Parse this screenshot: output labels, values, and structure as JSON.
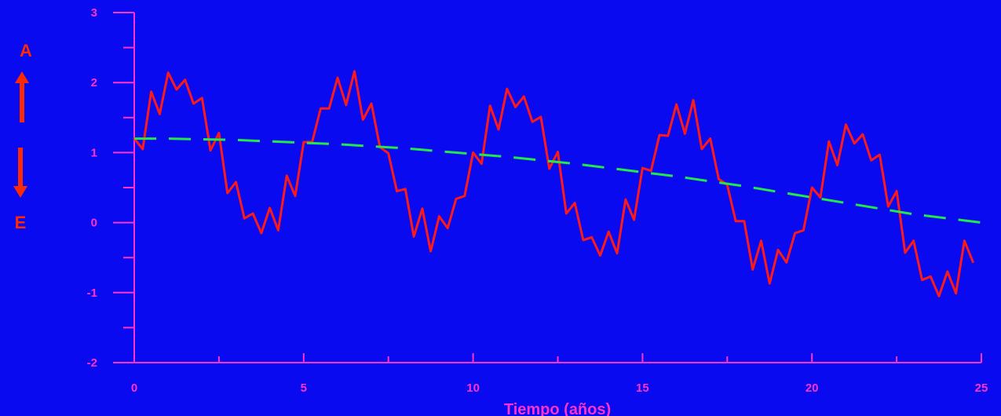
{
  "colors": {
    "background": "#0a0af0",
    "axis": "#ff33cc",
    "series_main": "#ff1a1a",
    "series_trend": "#22e84a",
    "side_labels": "#ff2a00"
  },
  "side_labels": {
    "top": "A",
    "bottom": "E"
  },
  "chart_data": {
    "type": "line",
    "title": "",
    "xlabel": "Tiempo (años)",
    "ylabel": "",
    "xlim": [
      0,
      25
    ],
    "ylim": [
      -2,
      3
    ],
    "xticks": [
      0,
      5,
      10,
      15,
      20,
      25
    ],
    "yticks": [
      -2,
      -1,
      0,
      1,
      2,
      3
    ],
    "x_minor_step": 2.5,
    "y_minor_step": 0.5,
    "grid": false,
    "series": [
      {
        "style": "solid",
        "color": "#ff1a1a",
        "x": [
          0,
          0.25,
          0.5,
          0.75,
          1,
          1.25,
          1.5,
          1.75,
          2,
          2.25,
          2.5,
          2.75,
          3,
          3.25,
          3.5,
          3.75,
          4,
          4.25,
          4.5,
          4.75,
          5,
          5.25,
          5.5,
          5.75,
          6,
          6.25,
          6.5,
          6.75,
          7,
          7.25,
          7.5,
          7.75,
          8,
          8.25,
          8.5,
          8.75,
          9,
          9.25,
          9.5,
          9.75,
          10,
          10.25,
          10.5,
          10.75,
          11,
          11.25,
          11.5,
          11.75,
          12,
          12.25,
          12.5,
          12.75,
          13,
          13.25,
          13.5,
          13.75,
          14,
          14.25,
          14.5,
          14.75,
          15,
          15.25,
          15.5,
          15.75,
          16,
          16.25,
          16.5,
          16.75,
          17,
          17.25,
          17.5,
          17.75,
          18,
          18.25,
          18.5,
          18.75,
          19,
          19.25,
          19.5,
          19.75,
          20,
          20.25,
          20.5,
          20.75,
          21,
          21.25,
          21.5,
          21.75,
          22,
          22.25,
          22.5,
          22.75,
          23,
          23.25,
          23.5,
          23.75,
          24,
          24.25,
          24.5,
          24.75
        ],
        "values": [
          1.2,
          1.05,
          1.87,
          1.55,
          2.14,
          1.9,
          2.04,
          1.7,
          1.78,
          1.03,
          1.28,
          0.42,
          0.58,
          0.06,
          0.13,
          -0.15,
          0.21,
          -0.11,
          0.67,
          0.38,
          1.15,
          1.15,
          1.63,
          1.63,
          2.07,
          1.68,
          2.16,
          1.47,
          1.7,
          1.08,
          0.99,
          0.45,
          0.48,
          -0.2,
          0.2,
          -0.41,
          0.09,
          -0.08,
          0.34,
          0.38,
          1.0,
          0.84,
          1.67,
          1.33,
          1.91,
          1.65,
          1.8,
          1.44,
          1.51,
          0.77,
          1.01,
          0.13,
          0.28,
          -0.25,
          -0.21,
          -0.47,
          -0.13,
          -0.44,
          0.33,
          0.04,
          0.78,
          0.74,
          1.25,
          1.24,
          1.69,
          1.27,
          1.75,
          1.05,
          1.2,
          0.62,
          0.54,
          0.02,
          0.02,
          -0.67,
          -0.26,
          -0.87,
          -0.39,
          -0.57,
          -0.15,
          -0.11,
          0.5,
          0.36,
          1.16,
          0.82,
          1.4,
          1.13,
          1.26,
          0.89,
          0.97,
          0.23,
          0.45,
          -0.43,
          -0.26,
          -0.82,
          -0.77,
          -1.05,
          -0.7,
          -1.01,
          -0.26,
          -0.56
        ]
      },
      {
        "style": "dashed",
        "color": "#22e84a",
        "x": [
          0,
          1,
          2,
          3,
          4,
          5,
          6,
          7,
          8,
          9,
          10,
          11,
          12,
          13,
          14,
          15,
          16,
          17,
          18,
          19,
          20,
          21,
          22,
          23,
          24,
          25
        ],
        "values": [
          1.2,
          1.2,
          1.19,
          1.18,
          1.16,
          1.14,
          1.12,
          1.09,
          1.06,
          1.02,
          0.98,
          0.94,
          0.89,
          0.84,
          0.78,
          0.72,
          0.66,
          0.59,
          0.52,
          0.44,
          0.36,
          0.28,
          0.2,
          0.12,
          0.06,
          0.0
        ]
      }
    ]
  }
}
